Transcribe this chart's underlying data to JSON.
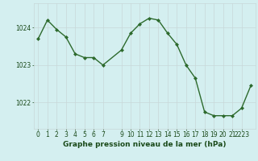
{
  "x": [
    0,
    1,
    2,
    3,
    4,
    5,
    6,
    7,
    9,
    10,
    11,
    12,
    13,
    14,
    15,
    16,
    17,
    18,
    19,
    20,
    21,
    22,
    23
  ],
  "y": [
    1023.7,
    1024.2,
    1023.95,
    1023.75,
    1023.3,
    1023.2,
    1023.2,
    1023.0,
    1023.4,
    1023.85,
    1024.1,
    1024.25,
    1024.2,
    1023.85,
    1023.55,
    1023.0,
    1022.65,
    1021.75,
    1021.65,
    1021.65,
    1021.65,
    1021.85,
    1022.45
  ],
  "line_color": "#2d6a2d",
  "marker": "D",
  "marker_size": 2.0,
  "line_width": 1.0,
  "bg_color": "#d4eff0",
  "plot_bg_color": "#d4eff0",
  "grid_color_major": "#c8d8d8",
  "grid_color_minor": "#dde8e8",
  "ylabel_ticks": [
    1022,
    1023,
    1024
  ],
  "ylim": [
    1021.3,
    1024.65
  ],
  "xlim": [
    -0.5,
    23.5
  ],
  "x_tick_pos": [
    0,
    1,
    2,
    3,
    4,
    5,
    6,
    7,
    9,
    10,
    11,
    12,
    13,
    14,
    15,
    16,
    17,
    18,
    19,
    20,
    21,
    22
  ],
  "x_tick_lab": [
    "0",
    "1",
    "2",
    "3",
    "4",
    "5",
    "6",
    "7",
    "9",
    "10",
    "11",
    "12",
    "13",
    "14",
    "15",
    "16",
    "17",
    "18",
    "19",
    "20",
    "21",
    "2223"
  ],
  "xlabel": "Graphe pression niveau de la mer (hPa)",
  "xlabel_fontsize": 6.5,
  "xlabel_color": "#1a4a1a",
  "tick_color": "#1a4a1a",
  "tick_fontsize": 5.5,
  "ytick_fontsize": 5.5
}
